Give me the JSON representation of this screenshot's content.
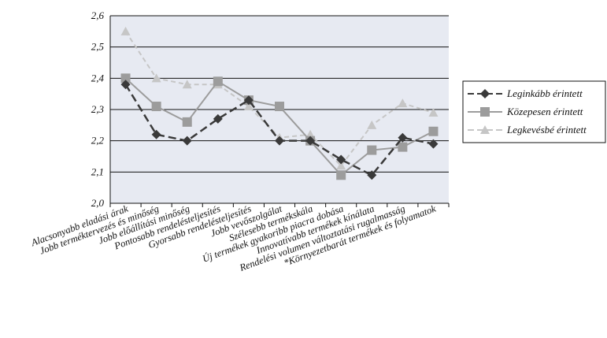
{
  "chart_data": {
    "type": "line",
    "categories": [
      "Alacsonyabb eladási árak",
      "Jobb terméktervezés és minőség",
      "Jobb előállítási minőség",
      "Pontosabb rendelésteljesítés",
      "Gyorsabb rendelésteljesítés",
      "Jobb vevőszolgálat",
      "Szélesebb termékskála",
      "Új termékek gyakoribb piacra dobása",
      "Innovatívabb termékek kínálata",
      "Rendelési volumen változtatási rugalmasság",
      "*Környezetbarát termékek és folyamatok"
    ],
    "ylim": [
      2.0,
      2.6
    ],
    "yticks": [
      "2,0",
      "2,1",
      "2,2",
      "2,3",
      "2,4",
      "2,5",
      "2,6"
    ],
    "grid": true,
    "legend_position": "right",
    "series": [
      {
        "name": "Leginkább érintett",
        "color": "#3a3a3a",
        "marker": "diamond",
        "line": "dashed",
        "values": [
          2.38,
          2.22,
          2.2,
          2.27,
          2.33,
          2.2,
          2.2,
          2.14,
          2.09,
          2.21,
          2.19
        ]
      },
      {
        "name": "Közepesen érintett",
        "color": "#9c9c9c",
        "marker": "square",
        "line": "solid",
        "values": [
          2.4,
          2.31,
          2.26,
          2.39,
          2.33,
          2.31,
          2.2,
          2.09,
          2.17,
          2.18,
          2.23
        ]
      },
      {
        "name": "Legkevésbé érintett",
        "color": "#c6c6c6",
        "marker": "triangle",
        "line": "dashed",
        "values": [
          2.55,
          2.4,
          2.38,
          2.38,
          2.31,
          2.21,
          2.22,
          2.12,
          2.25,
          2.32,
          2.29
        ]
      }
    ]
  }
}
